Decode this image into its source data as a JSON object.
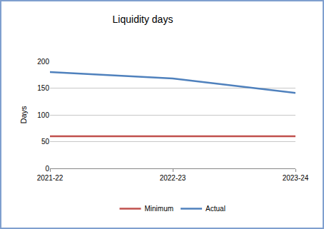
{
  "chart_data": {
    "type": "line",
    "title": "Liquidity days",
    "y_label": "Days",
    "categories": [
      "2021-22",
      "2022-23",
      "2023-24"
    ],
    "series": [
      {
        "name": "Minimum",
        "color": "#c0504d",
        "values": [
          60,
          60,
          60
        ]
      },
      {
        "name": "Actual",
        "color": "#4f81bd",
        "values": [
          180,
          168,
          141
        ]
      }
    ],
    "ylim": [
      0,
      200
    ],
    "yticks": [
      0,
      50,
      100,
      150,
      200
    ],
    "grid": true,
    "legend": "bottom"
  }
}
